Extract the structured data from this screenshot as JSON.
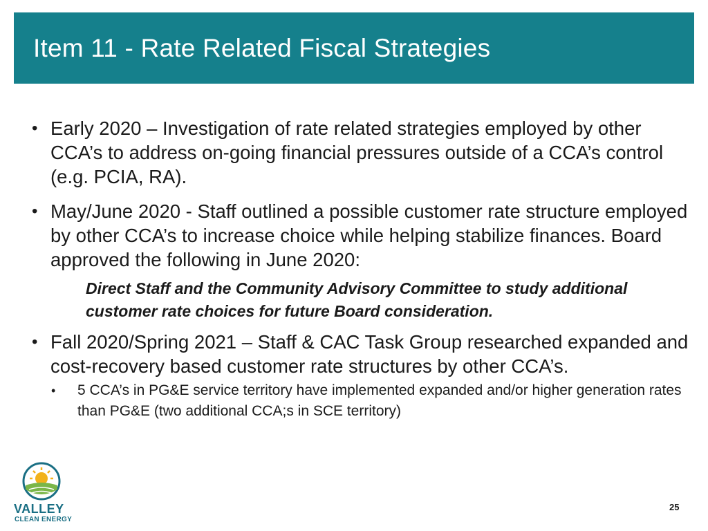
{
  "slide": {
    "title": "Item 11 - Rate Related Fiscal Strategies",
    "page_number": "25"
  },
  "content": {
    "bullet_symbol": "•",
    "bullets": [
      "Early 2020 – Investigation of rate related strategies employed by other CCA’s to address on-going financial pressures outside of a CCA’s control (e.g. PCIA, RA).",
      "May/June 2020 - Staff outlined a possible customer rate structure employed by other CCA’s to increase choice while helping stabilize finances.  Board approved the following in June 2020:",
      "Fall 2020/Spring 2021 – Staff & CAC Task Group researched expanded and cost-recovery based customer rate structures by other CCA’s."
    ],
    "quote": "Direct Staff and the Community Advisory Committee to study additional customer rate choices for future Board consideration.",
    "sub_bullets": [
      "5 CCA’s in PG&E service territory have implemented expanded and/or higher generation rates than PG&E (two additional CCA;s in SCE territory)"
    ]
  },
  "logo": {
    "line1": "VALLEY",
    "line2": "CLEAN ENERGY",
    "icon": "sun-over-fields-icon",
    "colors": {
      "sun": "#f2b21b",
      "field": "#7ab648",
      "ring": "#1a6f84"
    }
  },
  "colors": {
    "title_bar": "#15808c",
    "title_text": "#ffffff",
    "body_text": "#1a1a1a"
  }
}
